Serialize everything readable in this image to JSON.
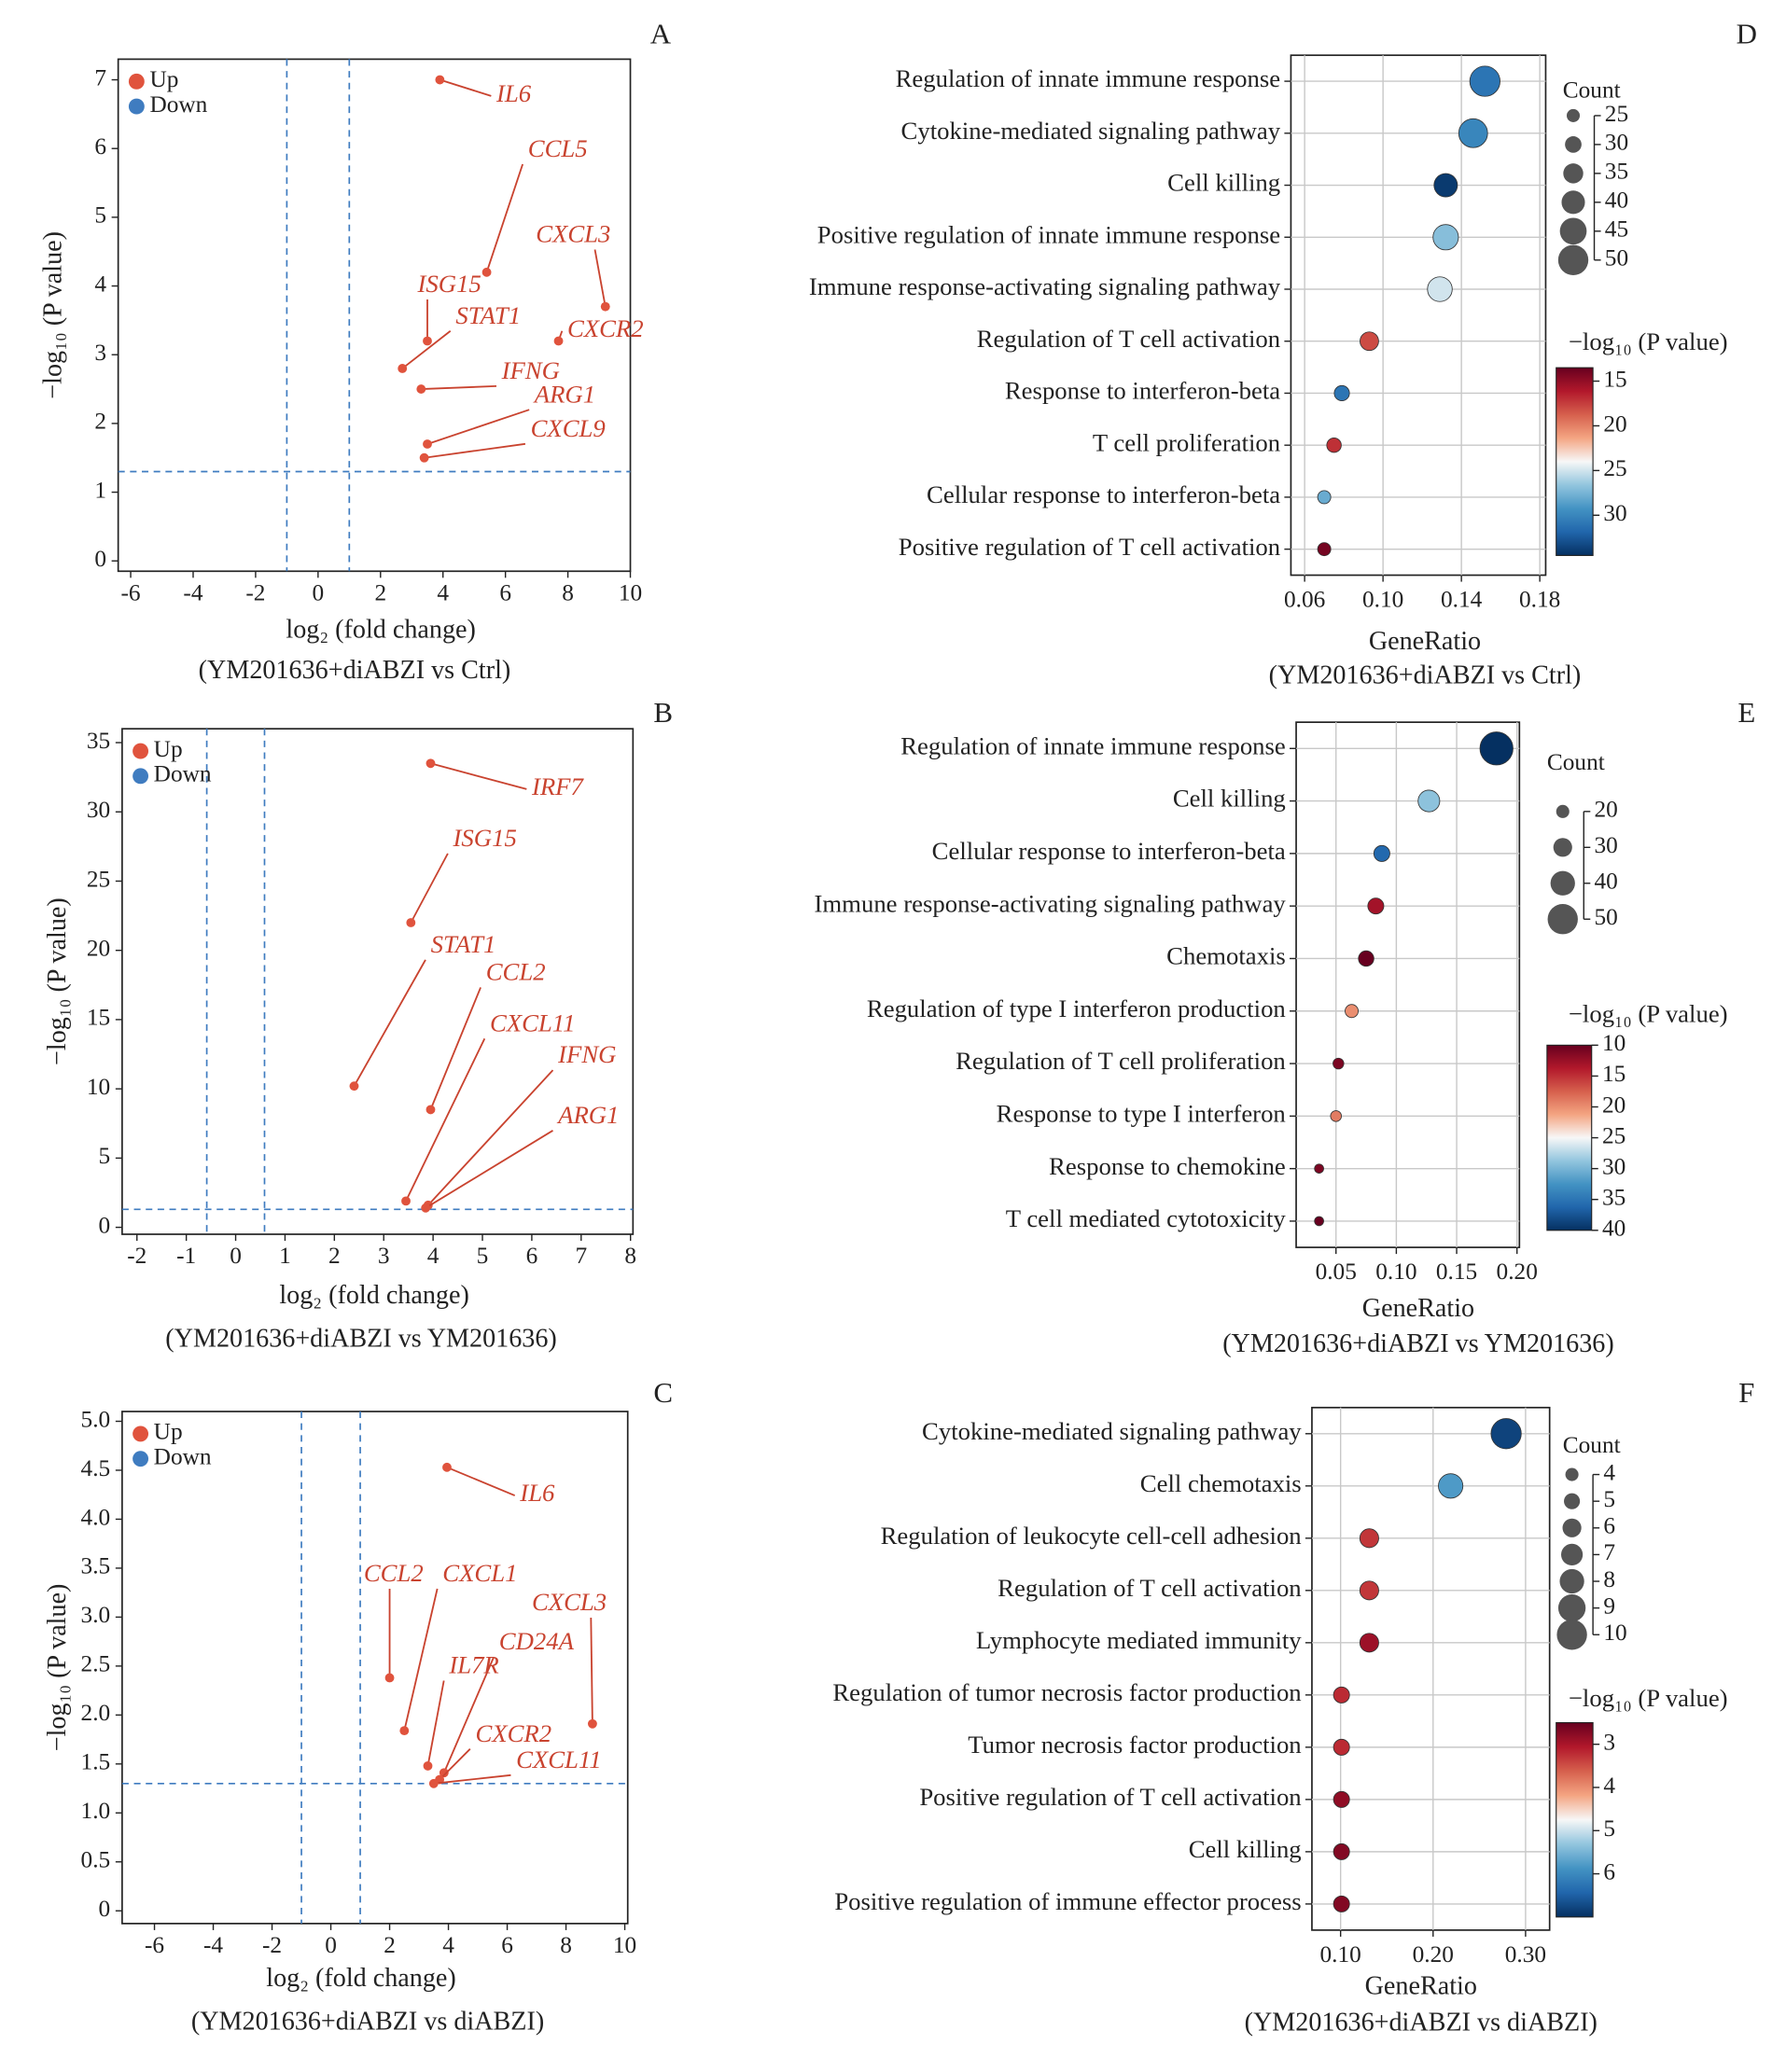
{
  "chart_data": [
    {
      "type": "volcano",
      "panel": "A",
      "x_label": "log₂ (fold change)",
      "y_label": "−log₁₀ (P value)",
      "subtitle": "(YM201636+diABZI vs Ctrl)",
      "xlim": [
        -6.4,
        10
      ],
      "ylim": [
        -0.15,
        7.3
      ],
      "xticks": [
        -6,
        -4,
        -2,
        0,
        2,
        4,
        6,
        8,
        10
      ],
      "yticks": [
        0,
        1,
        2,
        3,
        4,
        5,
        6,
        7
      ],
      "thresholds": {
        "x": [
          -1,
          1
        ],
        "y": 1.3
      },
      "legend": "upper left",
      "series": [
        {
          "name": "Up",
          "color": "#e0533d",
          "x": [
            3.9,
            5.4,
            9.2,
            3.5,
            2.7,
            7.7,
            3.3,
            3.5,
            3.4
          ],
          "y": [
            7.0,
            4.2,
            3.7,
            3.2,
            2.8,
            3.2,
            2.5,
            1.7,
            1.5
          ],
          "labels": [
            "IL6",
            "CCL5",
            "CXCL3",
            "ISG15",
            "STAT1",
            "CXCR2",
            "IFNG",
            "ARG1",
            "CXCL9"
          ]
        },
        {
          "name": "Down",
          "color": "#3f7cc0",
          "x": [],
          "y": []
        }
      ]
    },
    {
      "type": "volcano",
      "panel": "B",
      "x_label": "log₂ (fold change)",
      "y_label": "−log₁₀ (P value)",
      "subtitle": "(YM201636+diABZI vs YM201636)",
      "xlim": [
        -2.3,
        8.05
      ],
      "ylim": [
        -0.5,
        36
      ],
      "xticks": [
        -2,
        -1,
        0,
        1,
        2,
        3,
        4,
        5,
        6,
        7,
        8
      ],
      "yticks": [
        0,
        5,
        10,
        15,
        20,
        25,
        30,
        35
      ],
      "thresholds": {
        "x": [
          -0.585,
          0.585
        ],
        "y": 1.3
      },
      "legend": "upper left",
      "series": [
        {
          "name": "Up",
          "color": "#e0533d",
          "x": [
            3.95,
            3.55,
            2.4,
            3.95,
            3.45,
            3.9,
            3.85
          ],
          "y": [
            33.5,
            22,
            10.2,
            8.5,
            1.9,
            1.6,
            1.4
          ],
          "labels": [
            "IRF7",
            "ISG15",
            "STAT1",
            "CCL2",
            "CXCL11",
            "IFNG",
            "ARG1"
          ]
        },
        {
          "name": "Down",
          "color": "#3f7cc0",
          "x": [],
          "y": []
        }
      ]
    },
    {
      "type": "volcano",
      "panel": "C",
      "x_label": "log₂ (fold change)",
      "y_label": "−log₁₀ (P value)",
      "subtitle": "(YM201636+diABZI vs diABZI)",
      "xlim": [
        -7.1,
        10.1
      ],
      "ylim": [
        -0.13,
        5.1
      ],
      "xticks": [
        -6,
        -4,
        -2,
        0,
        2,
        4,
        6,
        8,
        10
      ],
      "yticks": [
        0,
        {
          "value": 0.5,
          "label": "0.5"
        },
        {
          "value": 1,
          "label": "1.0"
        },
        1.5,
        {
          "value": 2,
          "label": "2.0"
        },
        2.5,
        {
          "value": 3,
          "label": "3.0"
        },
        3.5,
        {
          "value": 4,
          "label": "4.0"
        },
        4.5,
        {
          "value": 5,
          "label": "5.0"
        }
      ],
      "thresholds": {
        "x": [
          -1,
          1
        ],
        "y": 1.3
      },
      "legend": "upper left",
      "series": [
        {
          "name": "Up",
          "color": "#e0533d",
          "x": [
            3.95,
            2.0,
            2.5,
            8.9,
            3.85,
            3.3,
            3.7,
            3.5
          ],
          "y": [
            4.53,
            2.38,
            1.84,
            1.91,
            1.41,
            1.48,
            1.34,
            1.3
          ],
          "labels": [
            "IL6",
            "CCL2",
            "CXCL1",
            "CXCL3",
            "CD24A",
            "IL7R",
            "CXCR2",
            "CXCL11"
          ]
        },
        {
          "name": "Down",
          "color": "#3f7cc0",
          "x": [],
          "y": []
        }
      ]
    },
    {
      "type": "dot",
      "panel": "D",
      "x_label": "GeneRatio",
      "subtitle": "(YM201636+diABZI vs Ctrl)",
      "categories": [
        "Regulation of innate immune response",
        "Cytokine-mediated signaling pathway",
        "Cell killing",
        "Positive regulation of innate immune response",
        "Immune response-activating signaling pathway",
        "Regulation of T cell activation",
        "Response to interferon-beta",
        "T cell proliferation",
        "Cellular response to interferon-beta",
        "Positive regulation of T cell activation"
      ],
      "values": [
        0.152,
        0.146,
        0.132,
        0.132,
        0.129,
        0.093,
        0.079,
        0.075,
        0.07,
        0.07
      ],
      "counts": [
        50,
        48,
        40,
        43,
        42,
        33,
        28,
        27,
        25,
        25
      ],
      "color_values": [
        31,
        30,
        34,
        27,
        25,
        18,
        31,
        17,
        28,
        14
      ],
      "xlim": [
        0.053,
        0.183
      ],
      "xticks": [
        0.06,
        {
          "value": 0.1,
          "label": "0.10"
        },
        0.14,
        0.18
      ],
      "grid": true,
      "size_label": "Count",
      "size_ticks": [
        25,
        30,
        35,
        40,
        45,
        50
      ],
      "color_label": "−log₁₀ (P value)",
      "clim": [
        13.5,
        34.5
      ],
      "cticks": [
        15,
        20,
        25,
        30
      ],
      "colormap": [
        "#67001f",
        "#b2182b",
        "#d6604d",
        "#f4a582",
        "#f7f7f7",
        "#92c5de",
        "#4393c3",
        "#2166ac",
        "#053061"
      ]
    },
    {
      "type": "dot",
      "panel": "E",
      "x_label": "GeneRatio",
      "subtitle": "(YM201636+diABZI vs YM201636)",
      "categories": [
        "Regulation of innate immune response",
        "Cell killing",
        "Cellular response to interferon-beta",
        "Immune response-activating signaling pathway",
        "Chemotaxis",
        "Regulation of type I interferon production",
        "Regulation of T cell proliferation",
        "Response to type I interferon",
        "Response to chemokine",
        "T cell mediated cytotoxicity"
      ],
      "values": [
        0.183,
        0.127,
        0.088,
        0.083,
        0.075,
        0.063,
        0.052,
        0.05,
        0.036,
        0.036
      ],
      "counts": [
        55,
        35,
        25,
        25,
        24,
        20,
        16,
        16,
        13,
        13
      ],
      "color_values": [
        40,
        29,
        36,
        13,
        10,
        20,
        11,
        19,
        11,
        10
      ],
      "xlim": [
        0.017,
        0.202
      ],
      "xticks": [
        0.05,
        {
          "value": 0.1,
          "label": "0.10"
        },
        0.15,
        {
          "value": 0.2,
          "label": "0.20"
        }
      ],
      "grid": true,
      "size_label": "Count",
      "size_ticks": [
        20,
        30,
        40,
        50
      ],
      "color_label": "−log₁₀ (P value)",
      "clim": [
        10,
        40
      ],
      "cticks": [
        10,
        15,
        20,
        25,
        30,
        35,
        40
      ],
      "colormap": [
        "#67001f",
        "#b2182b",
        "#d6604d",
        "#f4a582",
        "#f7f7f7",
        "#92c5de",
        "#4393c3",
        "#2166ac",
        "#053061"
      ]
    },
    {
      "type": "dot",
      "panel": "F",
      "x_label": "GeneRatio",
      "subtitle": "(YM201636+diABZI vs diABZI)",
      "categories": [
        "Cytokine-mediated signaling pathway",
        "Cell chemotaxis",
        "Regulation of leukocyte cell-cell adhesion",
        "Regulation of T cell activation",
        "Lymphocyte mediated immunity",
        "Regulation of tumor necrosis factor production",
        "Tumor necrosis factor production",
        "Positive regulation of T cell activation",
        "Cell killing",
        "Positive regulation of immune effector process"
      ],
      "values": [
        0.279,
        0.219,
        0.131,
        0.131,
        0.131,
        0.101,
        0.101,
        0.101,
        0.101,
        0.101
      ],
      "counts": [
        10,
        8,
        6,
        6,
        6,
        5,
        5,
        5,
        5,
        5
      ],
      "color_values": [
        6.8,
        5.8,
        3.3,
        3.3,
        2.9,
        3.2,
        3.2,
        2.8,
        2.7,
        2.7
      ],
      "xlim": [
        0.069,
        0.326
      ],
      "xticks": [
        {
          "value": 0.1,
          "label": "0.10"
        },
        {
          "value": 0.2,
          "label": "0.20"
        },
        {
          "value": 0.3,
          "label": "0.30"
        }
      ],
      "grid": true,
      "size_label": "Count",
      "size_ticks": [
        4,
        5,
        6,
        7,
        8,
        9,
        10
      ],
      "color_label": "−log₁₀ (P value)",
      "clim": [
        2.5,
        7
      ],
      "cticks": [
        3,
        4,
        5,
        6
      ],
      "colormap": [
        "#67001f",
        "#b2182b",
        "#d6604d",
        "#f4a582",
        "#f7f7f7",
        "#92c5de",
        "#4393c3",
        "#2166ac",
        "#053061"
      ]
    }
  ]
}
